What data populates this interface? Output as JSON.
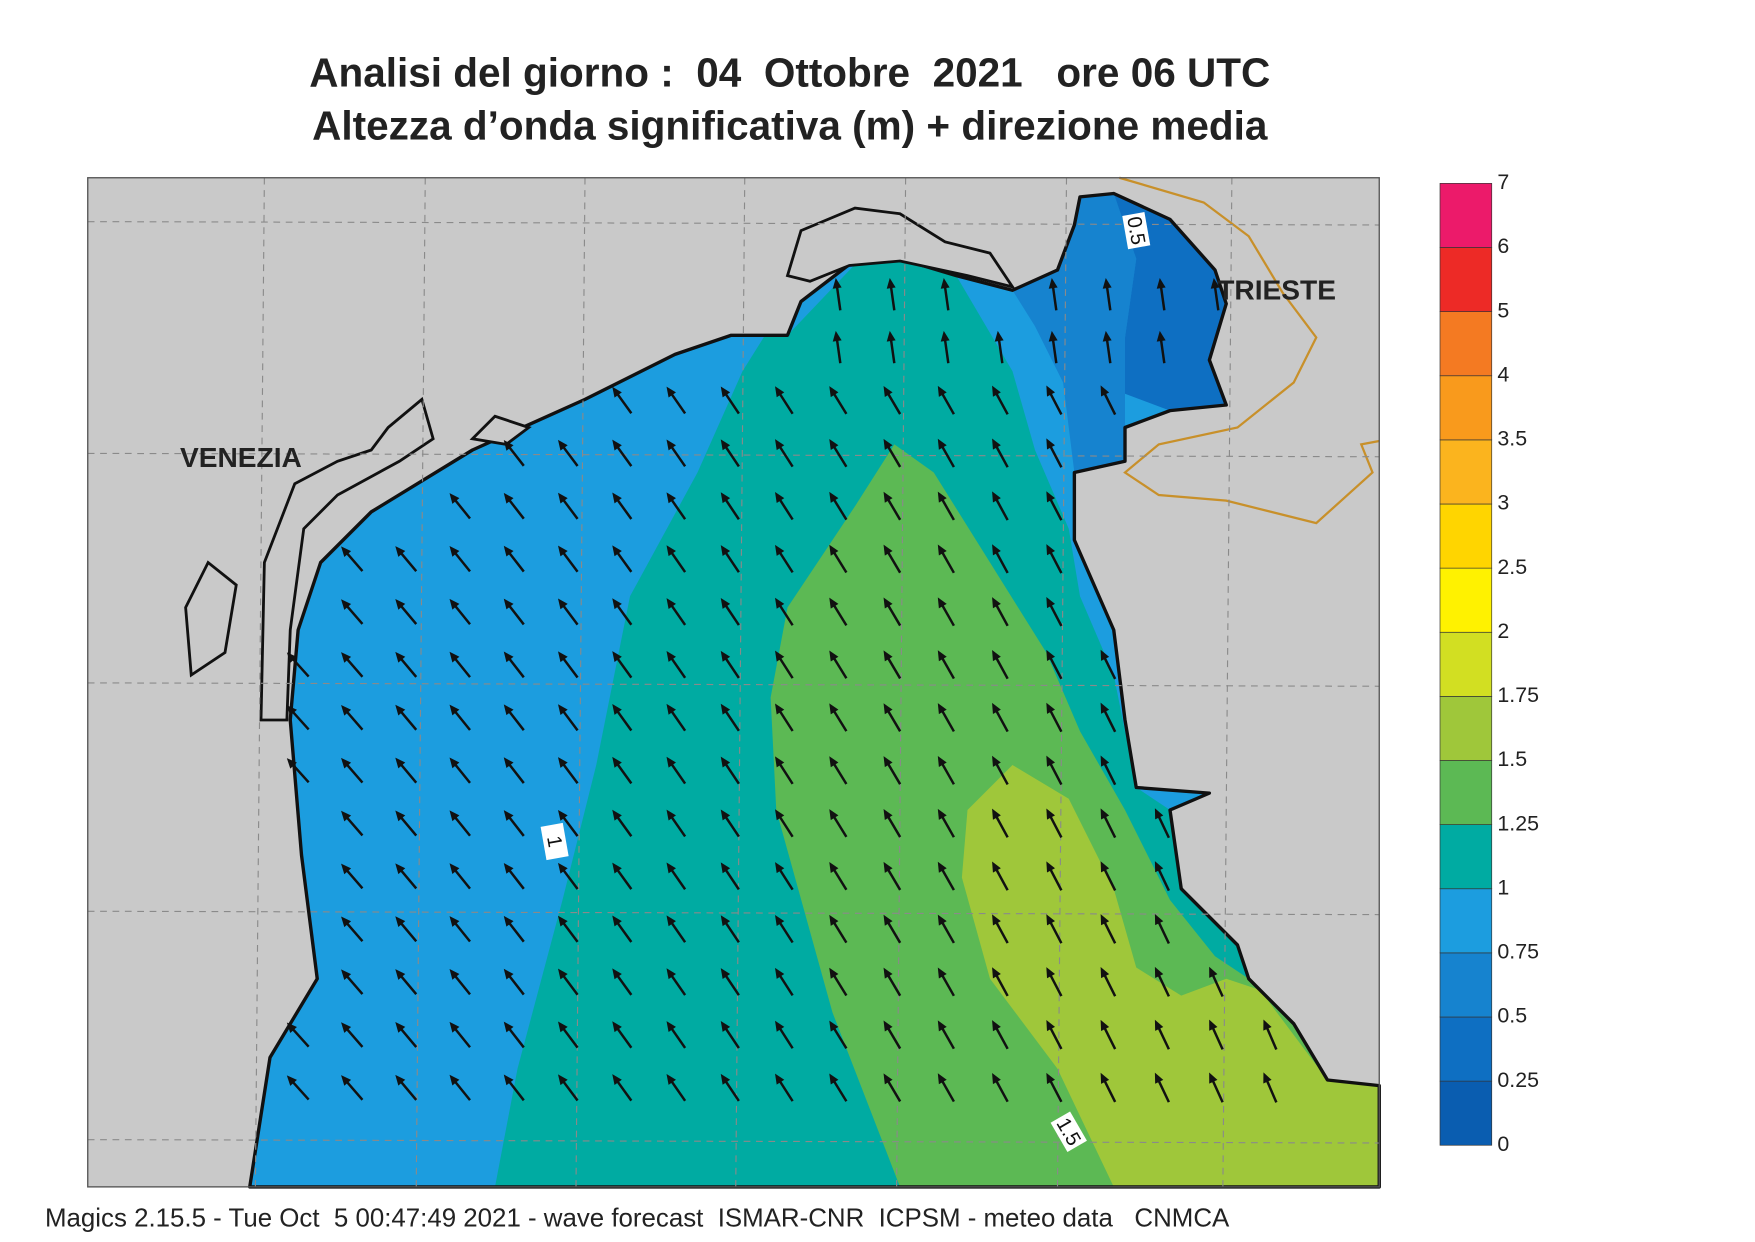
{
  "header": {
    "title_line1": "Analisi del giorno :  04  Ottobre  2021   ore 06 UTC",
    "title_line2": "Altezza d’onda significativa (m) + direzione media"
  },
  "map": {
    "cities": [
      "VENEZIA",
      "TRIESTE"
    ],
    "contour_labels": [
      "0.5",
      "1",
      "1.5"
    ]
  },
  "legend": {
    "ticks": [
      0,
      0.25,
      0.5,
      0.75,
      1,
      1.25,
      1.5,
      1.75,
      2,
      2.5,
      3,
      3.5,
      4,
      5,
      6,
      7
    ],
    "colors": [
      "#0a5db0",
      "#0e6fc2",
      "#1683cf",
      "#1c9ddf",
      "#00aba2",
      "#5cb954",
      "#9fc73a",
      "#d2df22",
      "#fff200",
      "#ffd500",
      "#fbb41e",
      "#f99a1c",
      "#f47a22",
      "#ed2a26",
      "#ec1a6a"
    ]
  },
  "footer": "Magics 2.15.5 - Tue Oct  5 00:47:49 2021 - wave forecast  ISMAR-CNR  ICPSM - meteo data   CNMCA"
}
